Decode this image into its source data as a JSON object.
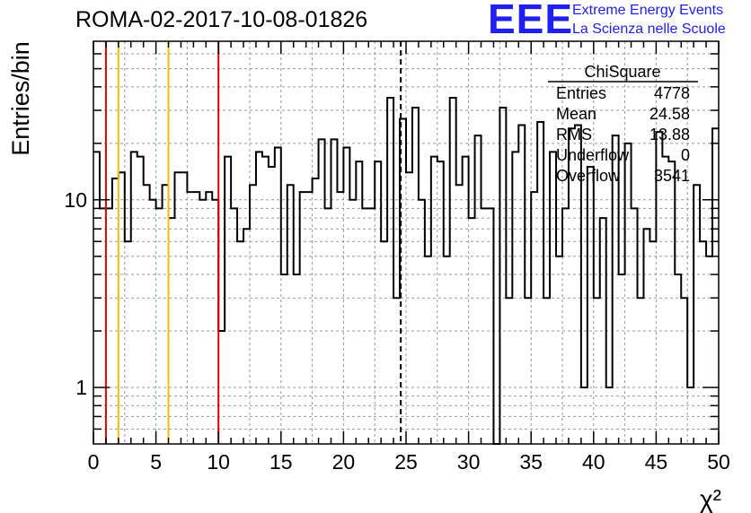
{
  "header": {
    "run_title": "ROMA-02-2017-10-08-01826",
    "logo_text": "EEE",
    "logo_line1": "Extreme Energy Events",
    "logo_line2": "La Scienza nelle Scuole"
  },
  "colors": {
    "histogram": "#000000",
    "grid": "#9a9a9a",
    "red_line": "#e00000",
    "yellow_line": "#f2c200",
    "logo": "#1f1ff0"
  },
  "stats": {
    "title": "ChiSquare",
    "rows": [
      {
        "label": "Entries",
        "value": "4778"
      },
      {
        "label": "Mean",
        "value": "24.58"
      },
      {
        "label": "RMS",
        "value": "13.88"
      },
      {
        "label": "Underflow",
        "value": "0"
      },
      {
        "label": "Overflow",
        "value": "3541"
      }
    ]
  },
  "chart_data": {
    "type": "bar",
    "style": "step-histogram",
    "xlabel": "χ²",
    "ylabel": "Entries/bin",
    "xlim": [
      0,
      50
    ],
    "ylim": [
      0.5,
      70
    ],
    "yscale": "log",
    "grid": true,
    "legend": "top-right",
    "bin_width": 0.5,
    "x_ticks": [
      "0",
      "5",
      "10",
      "15",
      "20",
      "25",
      "30",
      "35",
      "40",
      "45",
      "50"
    ],
    "y_ticks": [
      {
        "value": 1,
        "label": "1"
      },
      {
        "value": 10,
        "label": "10"
      }
    ],
    "values": [
      18,
      9,
      9,
      13,
      14,
      6,
      18,
      17,
      12,
      10,
      9,
      12,
      8,
      14,
      14,
      11,
      11,
      10,
      11,
      10,
      2,
      17,
      9,
      6,
      7,
      12,
      18,
      17,
      15,
      19,
      4,
      12,
      4,
      11,
      11,
      13,
      21,
      9,
      21,
      11,
      19,
      10,
      16,
      9,
      9,
      16,
      6,
      35,
      3,
      27,
      14,
      31,
      10,
      5,
      17,
      16,
      5,
      35,
      12,
      17,
      8,
      22,
      9,
      9,
      0.3,
      31,
      3,
      18,
      25,
      3,
      11,
      26,
      3,
      18,
      5,
      9,
      24,
      25,
      1,
      15,
      3,
      8,
      1,
      22,
      4,
      20,
      9,
      3,
      7,
      6,
      23,
      17,
      16,
      4,
      3,
      1,
      12,
      6,
      5,
      24
    ],
    "lines": [
      {
        "x": 1,
        "color": "#e00000",
        "style": "solid"
      },
      {
        "x": 2,
        "color": "#f2c200",
        "style": "solid"
      },
      {
        "x": 6,
        "color": "#f2c200",
        "style": "solid"
      },
      {
        "x": 10,
        "color": "#e00000",
        "style": "solid"
      },
      {
        "x": 24.58,
        "color": "#000000",
        "style": "dashed"
      }
    ]
  }
}
